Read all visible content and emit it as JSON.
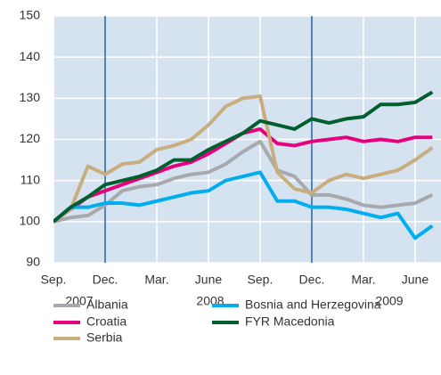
{
  "chart_data": {
    "type": "line",
    "categories": [
      "Sep.",
      null,
      null,
      "Dec.",
      null,
      null,
      "Mar.",
      null,
      null,
      "June",
      null,
      null,
      "Sep.",
      null,
      null,
      "Dec.",
      null,
      null,
      "Mar.",
      null,
      null,
      "June",
      null
    ],
    "year_labels": [
      "2007",
      "2008",
      "2009"
    ],
    "series": [
      {
        "name": "Albania",
        "color": "#a7a9ac",
        "values": [
          100,
          101,
          101.5,
          104,
          107.5,
          108.5,
          109,
          110.5,
          111.5,
          112,
          114,
          117,
          119.5,
          112.5,
          111,
          106.5,
          106.5,
          105.5,
          104,
          103.5,
          104,
          104.5,
          106.5
        ]
      },
      {
        "name": "Croatia",
        "color": "#e6007e",
        "values": [
          100,
          103,
          106,
          107.5,
          109,
          110.5,
          112,
          113.5,
          114.5,
          116.5,
          119,
          121.5,
          122.5,
          119,
          118.5,
          119.5,
          120,
          120.5,
          119.5,
          120,
          119.5,
          120.5,
          120.5
        ]
      },
      {
        "name": "Serbia",
        "color": "#c8ad7f",
        "values": [
          100,
          103,
          113.5,
          111.5,
          114,
          114.5,
          117.5,
          118.5,
          120,
          123.5,
          128,
          130,
          130.5,
          112,
          108,
          107,
          110,
          111.5,
          110.5,
          111.5,
          112.5,
          115,
          118
        ]
      },
      {
        "name": "Bosnia and Herzegovina",
        "color": "#00aeef",
        "values": [
          100,
          103.5,
          103.5,
          104.5,
          104.5,
          104,
          105,
          106,
          107,
          107.5,
          110,
          111,
          112,
          105,
          105,
          103.5,
          103.5,
          103,
          102,
          101,
          102,
          96,
          99
        ]
      },
      {
        "name": "FYR Macedonia",
        "color": "#005f2f",
        "values": [
          100,
          103.5,
          106,
          109,
          110,
          111,
          112.5,
          115,
          115,
          117.5,
          119.5,
          121.5,
          124.5,
          123.5,
          122.5,
          125,
          124,
          125,
          125.5,
          128.5,
          128.5,
          129,
          131.5
        ]
      }
    ],
    "ylim": [
      90,
      150
    ],
    "yticks": [
      90,
      100,
      110,
      120,
      130,
      140,
      150
    ],
    "grid": true
  }
}
